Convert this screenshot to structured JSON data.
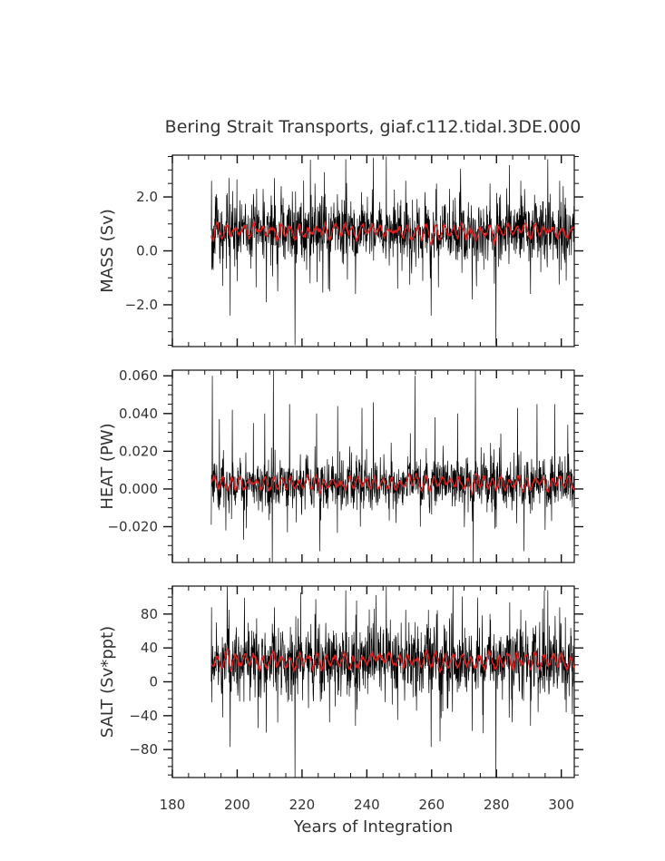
{
  "figure_title": "Bering Strait Transports, giaf.c112.tidal.3DE.000",
  "colors": {
    "raw": "#000000",
    "smooth": "#e02020",
    "frame": "#111111",
    "text": "#333333"
  },
  "chart_data": [
    {
      "type": "line",
      "panel": "mass",
      "title": "Bering Strait Transports, giaf.c112.tidal.3DE.000",
      "ylabel": "MASS (Sv)",
      "xlabel": "",
      "xlim": [
        180,
        304
      ],
      "ylim": [
        -3.55,
        3.55
      ],
      "x_ticks": [
        180,
        200,
        220,
        240,
        260,
        280,
        300
      ],
      "y_ticks": [
        -2.0,
        0.0,
        2.0
      ],
      "y_tick_labels": [
        "−2.0",
        "0.0",
        "2.0"
      ],
      "grid": false,
      "series": [
        {
          "role": "monthly",
          "x_start": 192.0,
          "x_end": 303.9,
          "mean": 0.72,
          "spread": 0.55,
          "max": 3.5,
          "min": -3.5,
          "peaks": [
            [
              192.1,
              2.6
            ],
            [
              193.6,
              2.1
            ],
            [
              197.5,
              2.7
            ],
            [
              206.0,
              2.3
            ],
            [
              211.5,
              2.7
            ],
            [
              224.0,
              2.5
            ],
            [
              233.5,
              3.4
            ],
            [
              246.0,
              3.5
            ],
            [
              252.0,
              2.6
            ],
            [
              261.5,
              2.5
            ],
            [
              265.5,
              2.3
            ],
            [
              278.0,
              2.5
            ],
            [
              287.5,
              2.6
            ],
            [
              295.8,
              3.4
            ],
            [
              299.5,
              2.6
            ]
          ],
          "troughs": [
            [
              192.2,
              -0.7
            ],
            [
              195.5,
              -1.3
            ],
            [
              197.8,
              -2.4
            ],
            [
              209.0,
              -1.9
            ],
            [
              212.5,
              -1.5
            ],
            [
              217.8,
              -3.5
            ],
            [
              228.5,
              -1.5
            ],
            [
              236.5,
              -1.6
            ],
            [
              249.5,
              -1.4
            ],
            [
              259.8,
              -2.4
            ],
            [
              272.5,
              -1.8
            ],
            [
              279.8,
              -3.5
            ],
            [
              290.5,
              -1.6
            ],
            [
              301.5,
              -1.1
            ]
          ]
        },
        {
          "role": "annual-mean",
          "mean": 0.72,
          "amplitude": 0.2,
          "period": 2.8
        }
      ]
    },
    {
      "type": "line",
      "panel": "heat",
      "title": "",
      "ylabel": "HEAT (PW)",
      "xlabel": "",
      "xlim": [
        180,
        304
      ],
      "ylim": [
        -0.039,
        0.063
      ],
      "x_ticks": [
        180,
        200,
        220,
        240,
        260,
        280,
        300
      ],
      "y_ticks": [
        -0.02,
        0.0,
        0.02,
        0.04,
        0.06
      ],
      "y_tick_labels": [
        "−0.020",
        "0.000",
        "0.020",
        "0.040",
        "0.060"
      ],
      "grid": false,
      "series": [
        {
          "role": "monthly",
          "x_start": 192.0,
          "x_end": 303.9,
          "mean": 0.003,
          "spread": 0.006,
          "max": 0.063,
          "min": -0.039,
          "peaks": [
            [
              192.3,
              0.06
            ],
            [
              194.5,
              0.037
            ],
            [
              198.5,
              0.042
            ],
            [
              205.0,
              0.035
            ],
            [
              208.5,
              0.04
            ],
            [
              211.2,
              0.063
            ],
            [
              216.2,
              0.045
            ],
            [
              224.5,
              0.04
            ],
            [
              231.0,
              0.044
            ],
            [
              238.5,
              0.043
            ],
            [
              242.0,
              0.046
            ],
            [
              254.8,
              0.06
            ],
            [
              261.0,
              0.038
            ],
            [
              268.0,
              0.04
            ],
            [
              273.5,
              0.063
            ],
            [
              286.5,
              0.043
            ],
            [
              292.5,
              0.045
            ],
            [
              298.0,
              0.045
            ],
            [
              302.0,
              0.034
            ]
          ],
          "troughs": [
            [
              192.0,
              -0.019
            ],
            [
              196.5,
              -0.022
            ],
            [
              202.0,
              -0.027
            ],
            [
              210.8,
              -0.039
            ],
            [
              215.5,
              -0.023
            ],
            [
              225.5,
              -0.033
            ],
            [
              238.0,
              -0.02
            ],
            [
              249.0,
              -0.018
            ],
            [
              256.5,
              -0.02
            ],
            [
              272.8,
              -0.039
            ],
            [
              279.5,
              -0.021
            ],
            [
              288.5,
              -0.033
            ],
            [
              297.0,
              -0.017
            ]
          ]
        },
        {
          "role": "annual-mean",
          "mean": 0.003,
          "amplitude": 0.003,
          "period": 2.6
        }
      ]
    },
    {
      "type": "line",
      "panel": "salt",
      "title": "",
      "ylabel": "SALT (Sv*ppt)",
      "xlabel": "Years of Integration",
      "xlim": [
        180,
        304
      ],
      "ylim": [
        -113,
        113
      ],
      "x_ticks": [
        180,
        200,
        220,
        240,
        260,
        280,
        300
      ],
      "x_tick_labels": [
        "180",
        "200",
        "220",
        "240",
        "260",
        "280",
        "300"
      ],
      "y_ticks": [
        -80,
        -40,
        0,
        40,
        80
      ],
      "y_tick_labels": [
        "−80",
        "−40",
        "0",
        "40",
        "80"
      ],
      "grid": false,
      "series": [
        {
          "role": "monthly",
          "x_start": 192.0,
          "x_end": 303.9,
          "mean": 25,
          "spread": 19,
          "max": 112,
          "min": -113,
          "peaks": [
            [
              192.1,
              88
            ],
            [
              193.6,
              70
            ],
            [
              197.5,
              85
            ],
            [
              206.0,
              75
            ],
            [
              211.5,
              88
            ],
            [
              224.0,
              80
            ],
            [
              233.5,
              108
            ],
            [
              246.0,
              112
            ],
            [
              252.0,
              85
            ],
            [
              261.5,
              80
            ],
            [
              265.5,
              75
            ],
            [
              278.0,
              80
            ],
            [
              287.5,
              85
            ],
            [
              295.8,
              108
            ],
            [
              299.5,
              88
            ]
          ],
          "troughs": [
            [
              192.2,
              -24
            ],
            [
              195.5,
              -42
            ],
            [
              197.8,
              -77
            ],
            [
              209.0,
              -60
            ],
            [
              212.5,
              -48
            ],
            [
              217.8,
              -113
            ],
            [
              228.5,
              -48
            ],
            [
              236.5,
              -52
            ],
            [
              249.5,
              -45
            ],
            [
              259.8,
              -77
            ],
            [
              272.5,
              -58
            ],
            [
              279.8,
              -113
            ],
            [
              290.5,
              -52
            ],
            [
              301.5,
              -36
            ]
          ]
        },
        {
          "role": "annual-mean",
          "mean": 25,
          "amplitude": 7,
          "period": 2.8
        }
      ]
    }
  ]
}
